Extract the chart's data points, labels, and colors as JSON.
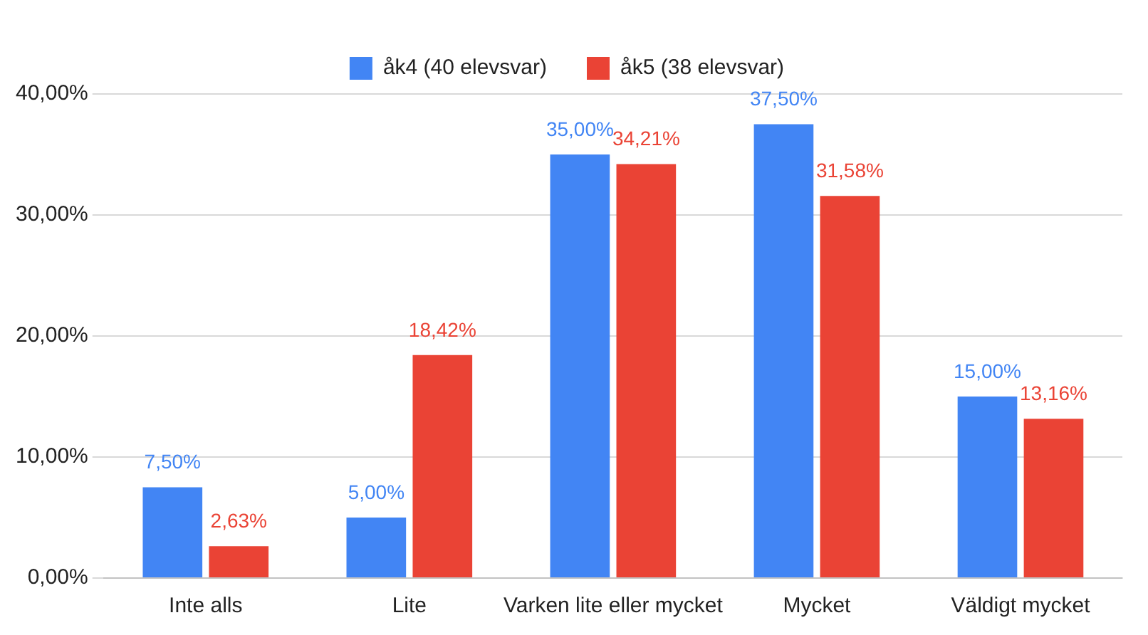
{
  "chart_data": {
    "type": "bar",
    "categories": [
      "Inte alls",
      "Lite",
      "Varken lite eller mycket",
      "Mycket",
      "Väldigt mycket"
    ],
    "series": [
      {
        "name": "åk4 (40 elevsvar)",
        "color": "#4285f4",
        "values": [
          7.5,
          5,
          35,
          37.5,
          15
        ],
        "value_labels": [
          "7,50%",
          "5,00%",
          "35,00%",
          "37,50%",
          "15,00%"
        ]
      },
      {
        "name": "åk5 (38 elevsvar)",
        "color": "#ea4335",
        "values": [
          2.63,
          18.42,
          34.21,
          31.58,
          13.16
        ],
        "value_labels": [
          "2,63%",
          "18,42%",
          "34,21%",
          "31,58%",
          "13,16%"
        ]
      }
    ],
    "ylim": [
      0,
      40
    ],
    "yticks": [
      {
        "value": 0,
        "label": "0,00%"
      },
      {
        "value": 10,
        "label": "10,00%"
      },
      {
        "value": 20,
        "label": "20,00%"
      },
      {
        "value": 30,
        "label": "30,00%"
      },
      {
        "value": 40,
        "label": "40,00%"
      }
    ],
    "grid": "y",
    "legend": "top"
  }
}
